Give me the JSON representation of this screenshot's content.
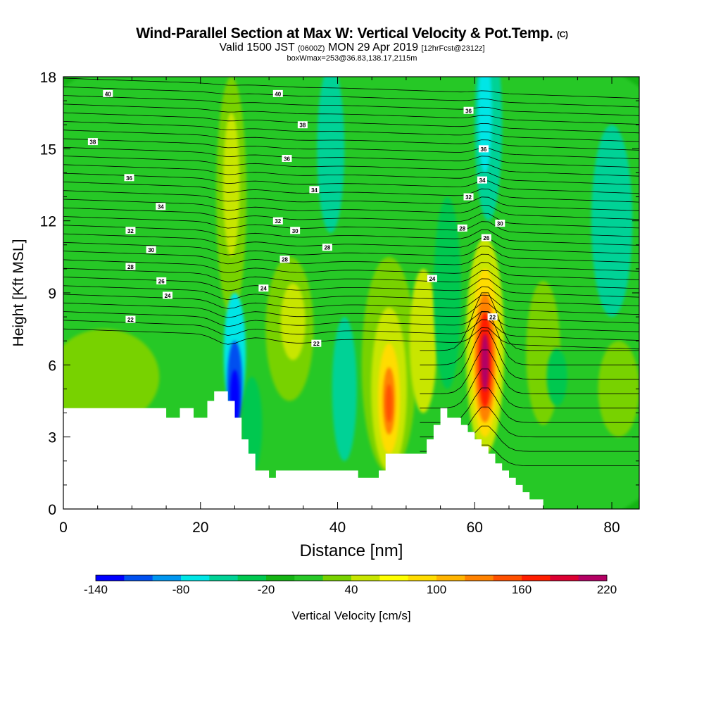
{
  "title": {
    "main": "Wind-Parallel Section at Max W: Vertical Velocity & Pot.Temp.",
    "copyright": "(C)",
    "valid_prefix": "Valid 1500 JST",
    "valid_utc": "(0600Z)",
    "valid_date": "MON 29 Apr 2019",
    "forecast": "[12hrFcst@2312z]",
    "box": "boxWmax=253@36.83,138.17,2115m"
  },
  "chart_data": {
    "type": "heatmap",
    "xlabel": "Distance [nm]",
    "ylabel": "Height [Kft MSL]",
    "xlim": [
      0,
      84
    ],
    "ylim": [
      0,
      18
    ],
    "x_ticks": [
      "0",
      "20",
      "40",
      "60",
      "80"
    ],
    "y_ticks": [
      "0",
      "3",
      "6",
      "9",
      "12",
      "15",
      "18"
    ],
    "colorbar": {
      "label": "Vertical Velocity [cm/s]",
      "tick_labels": [
        "-140",
        "-80",
        "-20",
        "40",
        "100",
        "160",
        "220"
      ],
      "levels": [
        -140,
        -120,
        -100,
        -80,
        -60,
        -40,
        -20,
        0,
        20,
        40,
        60,
        80,
        100,
        120,
        140,
        160,
        180,
        200,
        220
      ],
      "colors": [
        "#0000ff",
        "#0050f0",
        "#0096f0",
        "#00e6e6",
        "#00d296",
        "#00c850",
        "#14b414",
        "#28c828",
        "#78d200",
        "#c8e600",
        "#ffff00",
        "#ffdc00",
        "#ffb400",
        "#ff8200",
        "#ff5000",
        "#ff1e00",
        "#dc0032",
        "#b40064",
        "#800096"
      ]
    },
    "features": [
      {
        "name": "terrain",
        "x": [
          0,
          15,
          15,
          17,
          17,
          19,
          19,
          21,
          21,
          22,
          22,
          24,
          24,
          25,
          25,
          26,
          26,
          27,
          27,
          28,
          28,
          30,
          30,
          31,
          31,
          43,
          43,
          46,
          46,
          47,
          47,
          53,
          53,
          54,
          54,
          55,
          55,
          56,
          56,
          58,
          58,
          59,
          59,
          60,
          60,
          61,
          61,
          62,
          62,
          63,
          63,
          64,
          64,
          65,
          65,
          66,
          66,
          67,
          67,
          68,
          68,
          69,
          69,
          70,
          70,
          71,
          71,
          84
        ],
        "y": [
          4.2,
          4.2,
          3.8,
          3.8,
          4.2,
          4.2,
          3.8,
          3.8,
          4.5,
          4.5,
          4.9,
          4.9,
          4.5,
          4.5,
          3.8,
          3.8,
          2.9,
          2.9,
          2.3,
          2.3,
          1.6,
          1.6,
          1.3,
          1.3,
          1.6,
          1.6,
          1.3,
          1.3,
          1.6,
          1.6,
          2.3,
          2.3,
          2.9,
          2.9,
          3.5,
          3.5,
          4.2,
          4.2,
          3.8,
          3.8,
          3.5,
          3.5,
          3.2,
          3.2,
          2.9,
          2.9,
          2.6,
          2.6,
          2.3,
          2.3,
          1.9,
          1.9,
          1.6,
          1.6,
          1.3,
          1.3,
          1.0,
          1.0,
          0.7,
          0.7,
          0.4,
          0.4,
          0.4,
          0.4,
          0.0,
          0.0,
          0.0,
          0.0
        ]
      },
      {
        "name": "downdraft-core",
        "x": 25,
        "y": 4.5,
        "value": -140
      },
      {
        "name": "updraft-center",
        "x": 47.5,
        "y": 4.5,
        "value": 130
      },
      {
        "name": "updraft-east",
        "x": 61.5,
        "y": 6.2,
        "value": 220
      }
    ],
    "isotherm_labels": [
      "40",
      "38",
      "36",
      "34",
      "32",
      "30",
      "28",
      "26",
      "24",
      "22"
    ]
  },
  "label_instances": [
    {
      "text": "40",
      "x": 6.5,
      "y": 17.3
    },
    {
      "text": "38",
      "x": 4.3,
      "y": 15.3
    },
    {
      "text": "36",
      "x": 9.6,
      "y": 13.8
    },
    {
      "text": "34",
      "x": 14.2,
      "y": 12.6
    },
    {
      "text": "32",
      "x": 9.8,
      "y": 11.6
    },
    {
      "text": "30",
      "x": 12.8,
      "y": 10.8
    },
    {
      "text": "28",
      "x": 9.8,
      "y": 10.1
    },
    {
      "text": "26",
      "x": 14.3,
      "y": 9.5
    },
    {
      "text": "24",
      "x": 15.2,
      "y": 8.9
    },
    {
      "text": "22",
      "x": 9.8,
      "y": 7.9
    },
    {
      "text": "40",
      "x": 31.3,
      "y": 17.3
    },
    {
      "text": "38",
      "x": 34.9,
      "y": 16.0
    },
    {
      "text": "36",
      "x": 32.6,
      "y": 14.6
    },
    {
      "text": "34",
      "x": 36.6,
      "y": 13.3
    },
    {
      "text": "32",
      "x": 31.3,
      "y": 12.0
    },
    {
      "text": "30",
      "x": 33.8,
      "y": 11.6
    },
    {
      "text": "28",
      "x": 32.3,
      "y": 10.4
    },
    {
      "text": "28",
      "x": 38.5,
      "y": 10.9
    },
    {
      "text": "24",
      "x": 29.2,
      "y": 9.2
    },
    {
      "text": "22",
      "x": 36.9,
      "y": 6.9
    },
    {
      "text": "36",
      "x": 59.1,
      "y": 16.6
    },
    {
      "text": "36",
      "x": 61.3,
      "y": 15.0
    },
    {
      "text": "34",
      "x": 61.1,
      "y": 13.7
    },
    {
      "text": "32",
      "x": 59.1,
      "y": 13.0
    },
    {
      "text": "30",
      "x": 63.7,
      "y": 11.9
    },
    {
      "text": "28",
      "x": 58.2,
      "y": 11.7
    },
    {
      "text": "26",
      "x": 61.7,
      "y": 11.3
    },
    {
      "text": "24",
      "x": 53.8,
      "y": 9.6
    },
    {
      "text": "22",
      "x": 62.6,
      "y": 8.0
    }
  ]
}
